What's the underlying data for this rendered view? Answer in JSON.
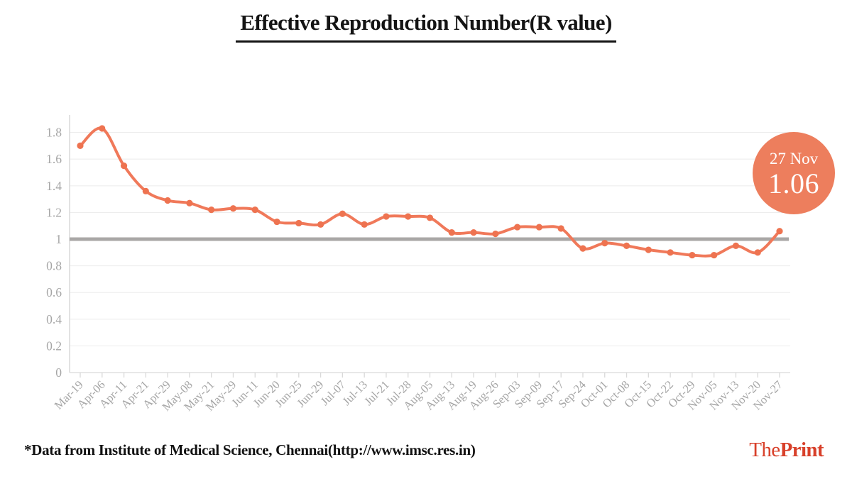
{
  "page": {
    "title": "Effective Reproduction Number(R value)",
    "background": "#ffffff"
  },
  "chart_data": {
    "type": "line",
    "title": "Effective Reproduction Number(R value)",
    "categories": [
      "Mar-19",
      "Apr-06",
      "Apr-11",
      "Apr-21",
      "Apr-29",
      "May-08",
      "May-21",
      "May-29",
      "Jun-11",
      "Jun-20",
      "Jun-25",
      "Jun-29",
      "Jul-07",
      "Jul-13",
      "Jul-21",
      "Jul-28",
      "Aug-05",
      "Aug-13",
      "Aug-19",
      "Aug-26",
      "Sep-03",
      "Sep-09",
      "Sep-17",
      "Sep-24",
      "Oct-01",
      "Oct-08",
      "Oct-15",
      "Oct-22",
      "Oct-29",
      "Nov-05",
      "Nov-13",
      "Nov-20",
      "Nov-27"
    ],
    "series": [
      {
        "name": "R value",
        "values": [
          1.7,
          1.83,
          1.55,
          1.36,
          1.29,
          1.27,
          1.22,
          1.23,
          1.22,
          1.13,
          1.12,
          1.11,
          1.19,
          1.11,
          1.17,
          1.17,
          1.16,
          1.05,
          1.05,
          1.04,
          1.09,
          1.09,
          1.08,
          0.93,
          0.97,
          0.95,
          0.92,
          0.9,
          0.88,
          0.88,
          0.95,
          0.9,
          1.06
        ]
      }
    ],
    "ylim": [
      0,
      1.93
    ],
    "yticks": [
      0,
      0.2,
      0.4,
      0.6,
      0.8,
      1,
      1.2,
      1.4,
      1.6,
      1.8
    ],
    "ytick_labels": [
      "0",
      "0.2",
      "0.4",
      "0.6",
      "0.8",
      "1",
      "1.2",
      "1.4",
      "1.6",
      "1.8"
    ],
    "reference_line": {
      "value": 1,
      "color": "#a9a7a6",
      "width": 5
    },
    "grid": true,
    "legend": "none",
    "colors": {
      "line": "#f0795a",
      "marker": "#ee7350",
      "grid": "#ededed",
      "axis": "#d9d9d9",
      "tick_label": "#a6a6a6"
    }
  },
  "badge": {
    "date": "27 Nov",
    "value": "1.06",
    "color": "#ed7e5d",
    "text_color": "#ffffff"
  },
  "footer": {
    "source_note": "*Data from Institute of Medical Science, Chennai(http://www.imsc.res.in)",
    "brand": {
      "regular": "The",
      "bold": "Print",
      "color": "#d8402a"
    }
  }
}
